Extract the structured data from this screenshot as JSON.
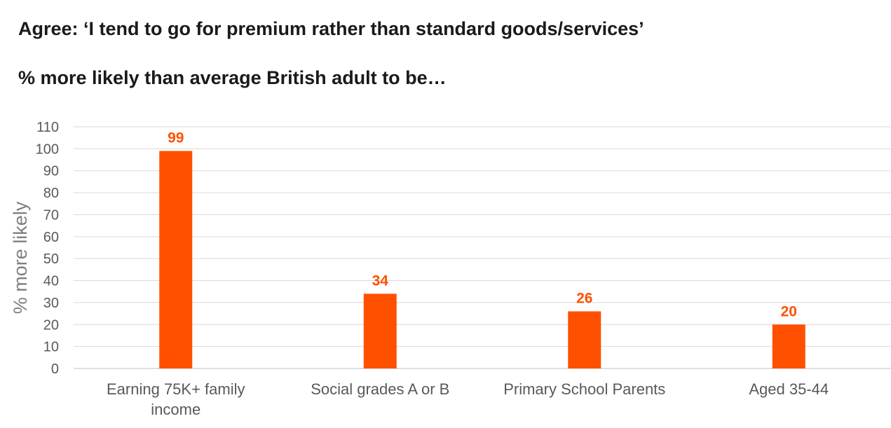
{
  "chart_data": {
    "type": "bar",
    "title": "Agree: ‘I tend to go for premium rather than standard goods/services’",
    "subtitle": "% more likely than average British adult to be…",
    "xlabel": "",
    "ylabel": "% more likely",
    "categories": [
      [
        "Earning 75K+ family",
        "income"
      ],
      [
        "Social grades A or B"
      ],
      [
        "Primary School Parents"
      ],
      [
        "Aged 35-44"
      ]
    ],
    "values": [
      99,
      34,
      26,
      20
    ],
    "data_labels": [
      "99",
      "34",
      "26",
      "20"
    ],
    "ylim": [
      0,
      110
    ],
    "yticks": [
      0,
      10,
      20,
      30,
      40,
      50,
      60,
      70,
      80,
      90,
      100,
      110
    ],
    "grid": true,
    "legend": "none",
    "colors": {
      "bar": "#ff5000",
      "data_label": "#ff5000",
      "grid": "#d9d9d9"
    }
  }
}
